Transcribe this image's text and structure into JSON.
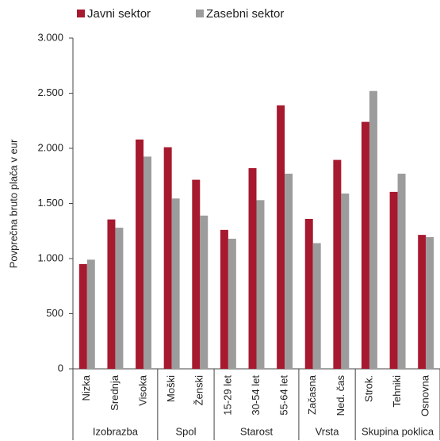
{
  "chart_data": {
    "type": "bar",
    "y_label": "Povprečna bruto plača v eur",
    "groups": [
      {
        "name": "Izobrazba",
        "categories": [
          "Nizka",
          "Srednja",
          "Visoka"
        ]
      },
      {
        "name": "Spol",
        "categories": [
          "Moški",
          "Ženski"
        ]
      },
      {
        "name": "Starost",
        "categories": [
          "15-29 let",
          "30-54 let",
          "55-64 let"
        ]
      },
      {
        "name": "Vrsta",
        "categories": [
          "Začasna",
          "Ned. čas"
        ]
      },
      {
        "name": "Skupina poklica",
        "categories": [
          "Strok.",
          "Tehniki",
          "Osnovna"
        ]
      }
    ],
    "series": [
      {
        "name": "Javni sektor",
        "color": "#a6192e",
        "values": [
          950,
          1355,
          2080,
          2010,
          1715,
          1260,
          1820,
          2390,
          1360,
          1895,
          2240,
          1605,
          1215
        ]
      },
      {
        "name": "Zasebni sektor",
        "color": "#9c9c9c",
        "values": [
          990,
          1280,
          1925,
          1545,
          1390,
          1180,
          1530,
          1770,
          1140,
          1590,
          2520,
          1770,
          1195
        ]
      }
    ],
    "ylim": [
      0,
      3000
    ],
    "yticks": [
      0,
      500,
      {
        "value": 1000,
        "label": "1.000"
      },
      {
        "value": 1500,
        "label": "1.500"
      },
      {
        "value": 2000,
        "label": "2.000"
      },
      {
        "value": 2500,
        "label": "2.500"
      },
      {
        "value": 3000,
        "label": "3.000"
      }
    ],
    "legend": "top"
  }
}
